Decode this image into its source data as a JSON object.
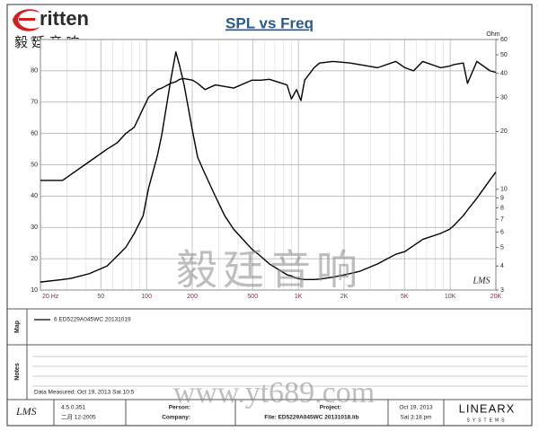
{
  "header": {
    "logo_text": "ritten",
    "logo_subtitle": "毅 廷 音 响"
  },
  "chart_data": {
    "type": "line",
    "title": "SPL vs Freq",
    "y2label": "Ohm",
    "plot_logo": "LMS",
    "xscale": "log",
    "xlim": [
      20,
      20000
    ],
    "xticks": [
      {
        "value": 20,
        "label": "20  Hz"
      },
      50,
      100,
      200,
      500,
      {
        "value": 1000,
        "label": "1K"
      },
      {
        "value": 2000,
        "label": "2K"
      },
      {
        "value": 5000,
        "label": "5K"
      },
      {
        "value": 10000,
        "label": "10K"
      },
      {
        "value": 20000,
        "label": "20K"
      }
    ],
    "x_minor_grid": [
      30,
      40,
      60,
      70,
      80,
      90,
      300,
      400,
      600,
      700,
      800,
      900,
      3000,
      4000,
      6000,
      7000,
      8000,
      9000
    ],
    "ylim": [
      10,
      90
    ],
    "yticks": [
      10,
      20,
      30,
      40,
      50,
      60,
      70,
      80,
      90
    ],
    "y2scale": "log",
    "y2lim": [
      3,
      60
    ],
    "y2ticks": [
      3,
      4,
      5,
      6,
      7,
      8,
      9,
      10,
      20,
      30,
      40,
      50,
      60
    ],
    "grid": true,
    "x": [
      20,
      28,
      32,
      42,
      55,
      64,
      73,
      83,
      95,
      103,
      118,
      126,
      144,
      156,
      165,
      177,
      201,
      217,
      243,
      284,
      327,
      375,
      493,
      564,
      644,
      842,
      900,
      972,
      1040,
      1100,
      1270,
      1380,
      1690,
      2195,
      2530,
      3330,
      4380,
      5030,
      5740,
      6600,
      8620,
      9900,
      10600,
      12200,
      13000,
      15000,
      18300,
      20000
    ],
    "series": [
      {
        "name": "6  ED5229A045WC  20131019",
        "color": "#000000",
        "values": [
          45,
          45,
          47,
          51,
          55,
          57,
          60,
          62,
          68,
          71.5,
          74,
          74.5,
          76,
          76.5,
          77.3,
          77.5,
          77,
          76,
          74,
          75.5,
          75,
          74.5,
          77,
          77,
          77.3,
          75.5,
          71,
          74,
          70.5,
          77,
          81,
          82.5,
          83,
          82.5,
          82,
          81,
          83,
          81,
          80,
          83,
          81,
          81.5,
          82,
          82.5,
          76,
          83,
          80,
          79.5
        ]
      },
      {
        "axis": "y2",
        "color": "#000000",
        "values": [
          3.3,
          3.4,
          3.45,
          3.65,
          4.0,
          4.5,
          5.0,
          5.9,
          7.3,
          10.1,
          15,
          19.2,
          36.6,
          51.7,
          44,
          34.7,
          20,
          14.7,
          12,
          9.2,
          7.3,
          6.2,
          4.9,
          4.5,
          4.1,
          3.6,
          3.55,
          3.45,
          3.42,
          3.4,
          3.4,
          3.42,
          3.5,
          3.65,
          3.75,
          4.1,
          4.6,
          4.75,
          5.1,
          5.5,
          5.9,
          6.2,
          6.5,
          7.3,
          7.8,
          9,
          11.2,
          12.3
        ]
      }
    ]
  },
  "map": {
    "label": "Map"
  },
  "notes": {
    "label": "Notes",
    "data_measured": "Data Measured: Oct 19, 2013  Sat 10:5"
  },
  "footer": {
    "logo": "LMS",
    "version": "4.5.0.351",
    "build_date": "二月 12-2005",
    "person_label": "Person:",
    "company_label": "Company:",
    "project_label": "Project:",
    "file": "File: ED5229A045WC 20131018.lib",
    "date": "Oct 19, 2013",
    "time": "Sat  3:18 pm",
    "brand": "LINEARX",
    "brand_sub": "SYSTEMS"
  },
  "watermarks": {
    "chinese": "毅廷音响",
    "url": "www.yt689.com"
  }
}
